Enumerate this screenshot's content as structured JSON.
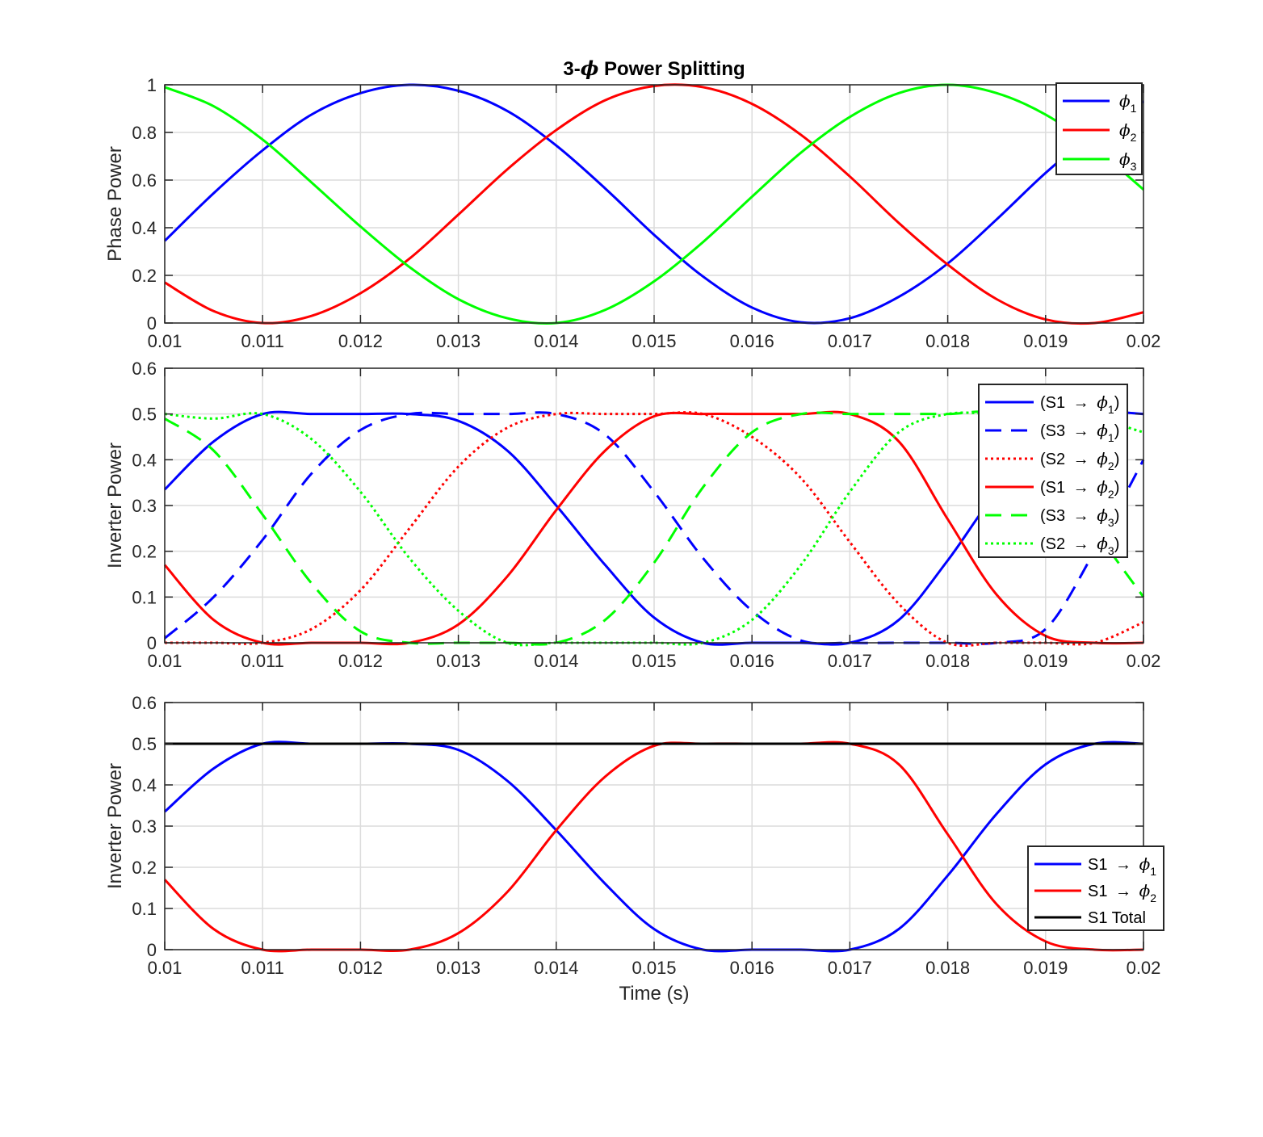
{
  "chart_data": [
    {
      "type": "line",
      "title": "3-ϕ Power Splitting",
      "xlabel": "",
      "ylabel": "Phase Power",
      "xlim": [
        0.01,
        0.02
      ],
      "ylim": [
        0,
        1
      ],
      "xticks": [
        "0.01",
        "0.011",
        "0.012",
        "0.013",
        "0.014",
        "0.015",
        "0.016",
        "0.017",
        "0.018",
        "0.019",
        "0.02"
      ],
      "yticks": [
        "0",
        "0.2",
        "0.4",
        "0.6",
        "0.8",
        "1"
      ],
      "grid": true,
      "legend_position": "top-right",
      "series": [
        {
          "name": "ϕ1",
          "color": "#0000ff",
          "style": "solid",
          "x": [
            0.01,
            0.0105,
            0.011,
            0.0115,
            0.012,
            0.0125,
            0.013,
            0.0135,
            0.014,
            0.0145,
            0.015,
            0.0155,
            0.016,
            0.0165,
            0.017,
            0.0175,
            0.018,
            0.0185,
            0.019,
            0.0195,
            0.02
          ],
          "y": [
            0.345,
            0.545,
            0.725,
            0.875,
            0.965,
            1.0,
            0.975,
            0.89,
            0.745,
            0.565,
            0.37,
            0.195,
            0.065,
            0.003,
            0.02,
            0.11,
            0.25,
            0.435,
            0.63,
            0.8,
            0.93
          ]
        },
        {
          "name": "ϕ2",
          "color": "#ff0000",
          "style": "solid",
          "x": [
            0.01,
            0.0105,
            0.011,
            0.0115,
            0.012,
            0.0125,
            0.013,
            0.0135,
            0.014,
            0.0145,
            0.015,
            0.0155,
            0.016,
            0.0165,
            0.017,
            0.0175,
            0.018,
            0.0185,
            0.019,
            0.0195,
            0.02
          ],
          "y": [
            0.17,
            0.05,
            0.0,
            0.03,
            0.125,
            0.27,
            0.455,
            0.645,
            0.81,
            0.935,
            0.995,
            0.99,
            0.92,
            0.79,
            0.615,
            0.42,
            0.245,
            0.1,
            0.015,
            0.0,
            0.045
          ]
        },
        {
          "name": "ϕ3",
          "color": "#00ff00",
          "style": "solid",
          "x": [
            0.01,
            0.0105,
            0.011,
            0.0115,
            0.012,
            0.0125,
            0.013,
            0.0135,
            0.014,
            0.0145,
            0.015,
            0.0155,
            0.016,
            0.0165,
            0.017,
            0.0175,
            0.018,
            0.0185,
            0.019,
            0.0195,
            0.02
          ],
          "y": [
            0.99,
            0.91,
            0.77,
            0.59,
            0.405,
            0.235,
            0.1,
            0.02,
            0.0,
            0.055,
            0.175,
            0.34,
            0.53,
            0.715,
            0.865,
            0.965,
            1.0,
            0.965,
            0.875,
            0.735,
            0.56
          ]
        }
      ]
    },
    {
      "type": "line",
      "title": "",
      "xlabel": "",
      "ylabel": "Inverter Power",
      "xlim": [
        0.01,
        0.02
      ],
      "ylim": [
        0,
        0.6
      ],
      "xticks": [
        "0.01",
        "0.011",
        "0.012",
        "0.013",
        "0.014",
        "0.015",
        "0.016",
        "0.017",
        "0.018",
        "0.019",
        "0.02"
      ],
      "yticks": [
        "0",
        "0.1",
        "0.2",
        "0.3",
        "0.4",
        "0.5",
        "0.6"
      ],
      "grid": true,
      "legend_position": "top-right",
      "series": [
        {
          "name": "(S1 → ϕ1)",
          "color": "#0000ff",
          "style": "solid",
          "x": [
            0.01,
            0.0105,
            0.011,
            0.0115,
            0.012,
            0.0125,
            0.013,
            0.0135,
            0.014,
            0.0145,
            0.015,
            0.0155,
            0.016,
            0.0165,
            0.017,
            0.0175,
            0.018,
            0.0185,
            0.019,
            0.0195,
            0.02
          ],
          "y": [
            0.335,
            0.44,
            0.5,
            0.5,
            0.5,
            0.5,
            0.485,
            0.42,
            0.3,
            0.17,
            0.055,
            0.0,
            0.0,
            0.0,
            0.0,
            0.05,
            0.18,
            0.33,
            0.44,
            0.5,
            0.5
          ]
        },
        {
          "name": "(S3 → ϕ1)",
          "color": "#0000ff",
          "style": "dashed",
          "x": [
            0.01,
            0.0105,
            0.011,
            0.0115,
            0.012,
            0.0125,
            0.013,
            0.0135,
            0.014,
            0.0145,
            0.015,
            0.0155,
            0.016,
            0.0165,
            0.017,
            0.0175,
            0.018,
            0.0185,
            0.019,
            0.0195,
            0.02
          ],
          "y": [
            0.01,
            0.1,
            0.225,
            0.37,
            0.465,
            0.5,
            0.5,
            0.5,
            0.5,
            0.455,
            0.33,
            0.185,
            0.07,
            0.005,
            0.0,
            0.0,
            0.0,
            0.0,
            0.03,
            0.2,
            0.4
          ]
        },
        {
          "name": "(S2 → ϕ2)",
          "color": "#ff0000",
          "style": "dotted",
          "x": [
            0.01,
            0.0105,
            0.011,
            0.0115,
            0.012,
            0.0125,
            0.013,
            0.0135,
            0.014,
            0.0145,
            0.015,
            0.0155,
            0.016,
            0.0165,
            0.017,
            0.0175,
            0.018,
            0.0185,
            0.019,
            0.0195,
            0.02
          ],
          "y": [
            0.0,
            0.0,
            0.0,
            0.03,
            0.115,
            0.25,
            0.385,
            0.47,
            0.5,
            0.5,
            0.5,
            0.5,
            0.45,
            0.36,
            0.22,
            0.085,
            0.0,
            0.0,
            0.0,
            0.0,
            0.045
          ]
        },
        {
          "name": "(S1 → ϕ2)",
          "color": "#ff0000",
          "style": "solid",
          "x": [
            0.01,
            0.0105,
            0.011,
            0.0115,
            0.012,
            0.0125,
            0.013,
            0.0135,
            0.014,
            0.0145,
            0.015,
            0.0155,
            0.016,
            0.0165,
            0.017,
            0.0175,
            0.018,
            0.0185,
            0.019,
            0.0195,
            0.02
          ],
          "y": [
            0.17,
            0.05,
            0.0,
            0.0,
            0.0,
            0.0,
            0.04,
            0.145,
            0.29,
            0.42,
            0.495,
            0.5,
            0.5,
            0.5,
            0.5,
            0.44,
            0.27,
            0.105,
            0.015,
            0.0,
            0.0
          ]
        },
        {
          "name": "(S3 → ϕ3)",
          "color": "#00ff00",
          "style": "dashed",
          "x": [
            0.01,
            0.0105,
            0.011,
            0.0115,
            0.012,
            0.0125,
            0.013,
            0.0135,
            0.014,
            0.0145,
            0.015,
            0.0155,
            0.016,
            0.0165,
            0.017,
            0.0175,
            0.018,
            0.0185,
            0.019,
            0.0195,
            0.02
          ],
          "y": [
            0.49,
            0.42,
            0.28,
            0.13,
            0.025,
            0.0,
            0.0,
            0.0,
            0.0,
            0.05,
            0.175,
            0.34,
            0.46,
            0.5,
            0.5,
            0.5,
            0.5,
            0.5,
            0.43,
            0.25,
            0.1
          ]
        },
        {
          "name": "(S2 → ϕ3)",
          "color": "#00ff00",
          "style": "dotted",
          "x": [
            0.01,
            0.0105,
            0.011,
            0.0115,
            0.012,
            0.0125,
            0.013,
            0.0135,
            0.014,
            0.0145,
            0.015,
            0.0155,
            0.016,
            0.0165,
            0.017,
            0.0175,
            0.018,
            0.0185,
            0.019,
            0.0195,
            0.02
          ],
          "y": [
            0.5,
            0.49,
            0.5,
            0.445,
            0.33,
            0.185,
            0.07,
            0.0,
            0.0,
            0.0,
            0.0,
            0.0,
            0.05,
            0.17,
            0.33,
            0.46,
            0.5,
            0.5,
            0.5,
            0.49,
            0.46
          ]
        }
      ]
    },
    {
      "type": "line",
      "title": "",
      "xlabel": "Time (s)",
      "ylabel": "Inverter Power",
      "xlim": [
        0.01,
        0.02
      ],
      "ylim": [
        0,
        0.6
      ],
      "xticks": [
        "0.01",
        "0.011",
        "0.012",
        "0.013",
        "0.014",
        "0.015",
        "0.016",
        "0.017",
        "0.018",
        "0.019",
        "0.02"
      ],
      "yticks": [
        "0",
        "0.1",
        "0.2",
        "0.3",
        "0.4",
        "0.5",
        "0.6"
      ],
      "grid": true,
      "legend_position": "bottom-right",
      "series": [
        {
          "name": "S1 → ϕ1",
          "color": "#0000ff",
          "style": "solid",
          "x": [
            0.01,
            0.0105,
            0.011,
            0.0115,
            0.012,
            0.0125,
            0.013,
            0.0135,
            0.014,
            0.0145,
            0.015,
            0.0155,
            0.016,
            0.0165,
            0.017,
            0.0175,
            0.018,
            0.0185,
            0.019,
            0.0195,
            0.02
          ],
          "y": [
            0.335,
            0.44,
            0.5,
            0.5,
            0.5,
            0.5,
            0.485,
            0.41,
            0.29,
            0.16,
            0.05,
            0.0,
            0.0,
            0.0,
            0.0,
            0.05,
            0.18,
            0.33,
            0.45,
            0.5,
            0.5
          ]
        },
        {
          "name": "S1 → ϕ2",
          "color": "#ff0000",
          "style": "solid",
          "x": [
            0.01,
            0.0105,
            0.011,
            0.0115,
            0.012,
            0.0125,
            0.013,
            0.0135,
            0.014,
            0.0145,
            0.015,
            0.0155,
            0.016,
            0.0165,
            0.017,
            0.0175,
            0.018,
            0.0185,
            0.019,
            0.0195,
            0.02
          ],
          "y": [
            0.17,
            0.05,
            0.0,
            0.0,
            0.0,
            0.0,
            0.04,
            0.14,
            0.29,
            0.42,
            0.495,
            0.5,
            0.5,
            0.5,
            0.5,
            0.45,
            0.28,
            0.11,
            0.02,
            0.0,
            0.0
          ]
        },
        {
          "name": "S1 Total",
          "color": "#000000",
          "style": "solid",
          "x": [
            0.01,
            0.02
          ],
          "y": [
            0.5,
            0.5
          ]
        }
      ]
    }
  ]
}
